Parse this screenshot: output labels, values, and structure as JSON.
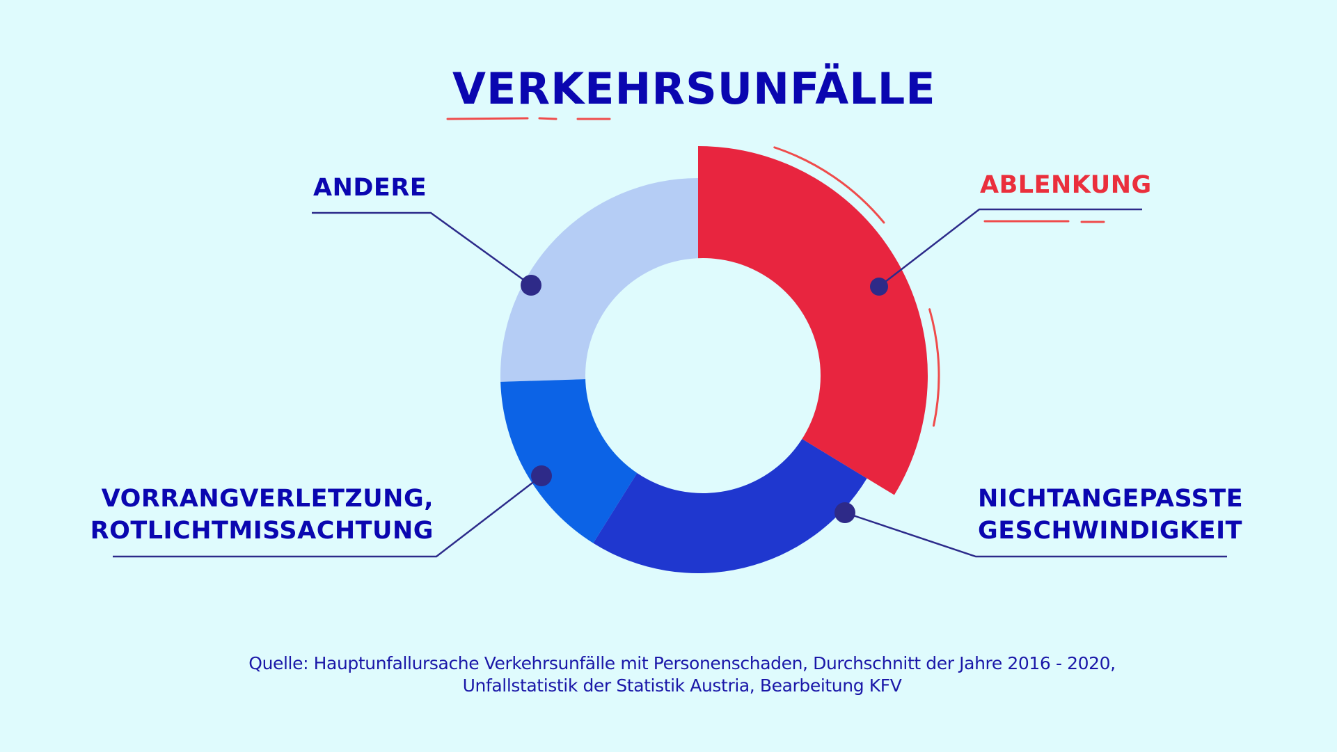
{
  "title": "VERKEHRSUNFÄLLE",
  "labels": {
    "ablenkung": "ABLENKUNG",
    "andere": "ANDERE",
    "vorrang_line1": "VORRANGVERLETZUNG,",
    "vorrang_line2": "ROTLICHTMISSACHTUNG",
    "geschwindigkeit_line1": "NICHTANGEPASSTE",
    "geschwindigkeit_line2": "GESCHWINDIGKEIT"
  },
  "source": {
    "line1": "Quelle: Hauptunfallursache Verkehrsunfälle mit Personenschaden, Durchschnitt der Jahre 2016 - 2020,",
    "line2": "Unfallstatistik der Statistik Austria, Bearbeitung KFV"
  },
  "colors": {
    "background": "#dffbfd",
    "title": "#0a06b0",
    "ablenkung": "#e8253f",
    "nichtangepasste_geschwindigkeit": "#1f37cf",
    "vorrangverletzung": "#0c63e6",
    "andere": "#b5cdf5",
    "accent_red": "#ef4b4b",
    "connector": "#2c2a8a"
  },
  "chart_data": {
    "type": "pie",
    "variant": "donut",
    "title": "VERKEHRSUNFÄLLE",
    "categories": [
      "ABLENKUNG",
      "NICHTANGEPASSTE GESCHWINDIGKEIT",
      "VORRANGVERLETZUNG, ROTLICHTMISSACHTUNG",
      "ANDERE"
    ],
    "values": [
      33.7,
      25.2,
      15.6,
      25.5
    ],
    "unit": "percent (estimated from arc angles, not labeled)",
    "start_angle_deg": 0,
    "direction": "clockwise",
    "highlighted": "ABLENKUNG",
    "legend": "callout labels with leader lines",
    "source": "Quelle: Hauptunfallursache Verkehrsunfälle mit Personenschaden, Durchschnitt der Jahre 2016 - 2020, Unfallstatistik der Statistik Austria, Bearbeitung KFV"
  }
}
